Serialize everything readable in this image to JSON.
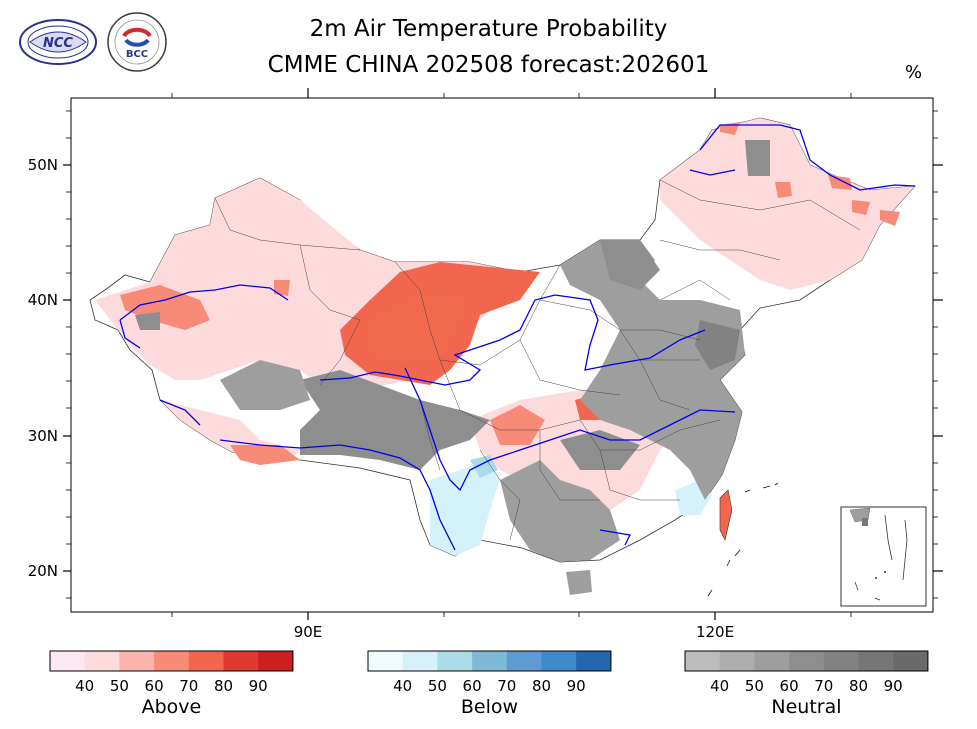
{
  "header": {
    "title_line1": "2m Air Temperature Probability",
    "title_line2": "CMME CHINA 202508 forecast:202601",
    "unit": "%"
  },
  "logos": {
    "left": "NCC",
    "right": "BCC",
    "right_ring_text": "BEIJING CLIMATE CENTER"
  },
  "map": {
    "lat_ticks": [
      "50N",
      "40N",
      "30N",
      "20N"
    ],
    "lon_ticks": [
      "90E",
      "120E"
    ]
  },
  "colorbars": [
    {
      "title": "Above",
      "ticks": [
        "40",
        "50",
        "60",
        "70",
        "80",
        "90"
      ],
      "colors": [
        "#fde8f4",
        "#fddbdd",
        "#fbb3ab",
        "#f88a78",
        "#f26650",
        "#df3a30",
        "#cc1f1f"
      ]
    },
    {
      "title": "Below",
      "ticks": [
        "40",
        "50",
        "60",
        "70",
        "80",
        "90"
      ],
      "colors": [
        "#f0fbfe",
        "#d5f2fb",
        "#a9dbe8",
        "#7eb9d6",
        "#5f9bd3",
        "#3e8acb",
        "#2266ad"
      ]
    },
    {
      "title": "Neutral",
      "ticks": [
        "40",
        "50",
        "60",
        "70",
        "80",
        "90"
      ],
      "colors": [
        "#bdbdbd",
        "#adadad",
        "#9e9e9e",
        "#8e8e8e",
        "#828282",
        "#767676",
        "#6a6a6a"
      ]
    }
  ]
}
